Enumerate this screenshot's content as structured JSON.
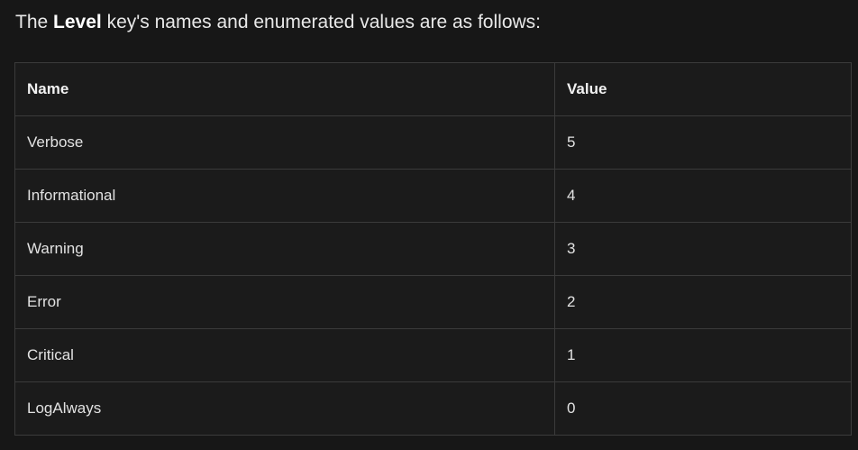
{
  "intro": {
    "before": "The ",
    "key": "Level",
    "after": " key's names and enumerated values are as follows:"
  },
  "table": {
    "headers": [
      "Name",
      "Value"
    ],
    "rows": [
      {
        "name": "Verbose",
        "value": "5"
      },
      {
        "name": "Informational",
        "value": "4"
      },
      {
        "name": "Warning",
        "value": "3"
      },
      {
        "name": "Error",
        "value": "2"
      },
      {
        "name": "Critical",
        "value": "1"
      },
      {
        "name": "LogAlways",
        "value": "0"
      }
    ]
  }
}
